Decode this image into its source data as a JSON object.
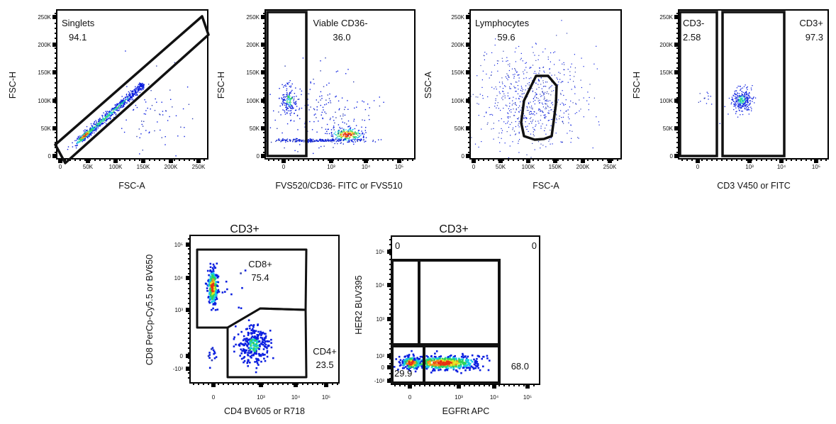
{
  "chart_data": [
    {
      "type": "scatter",
      "title": "",
      "xlabel": "FSC-A",
      "ylabel": "FSC-H",
      "xscale": "linear",
      "yscale": "linear",
      "xticks": [
        "0",
        "50K",
        "100K",
        "150K",
        "200K",
        "250K"
      ],
      "yticks": [
        "0",
        "50K",
        "100K",
        "150K",
        "200K",
        "250K"
      ],
      "xlim": [
        0,
        262144
      ],
      "ylim": [
        0,
        262144
      ],
      "gates": [
        {
          "name": "Singlets",
          "value": "94.1"
        }
      ]
    },
    {
      "type": "scatter",
      "title": "",
      "xlabel": "FVS520/CD36- FITC or FVS510",
      "ylabel": "FSC-H",
      "xscale": "biexponential",
      "yscale": "linear",
      "xticks": [
        "0",
        "10³",
        "10⁴",
        "10⁵"
      ],
      "yticks": [
        "0",
        "50K",
        "100K",
        "150K",
        "200K",
        "250K"
      ],
      "ylim": [
        0,
        262144
      ],
      "gates": [
        {
          "name": "Viable CD36-",
          "value": "36.0"
        }
      ]
    },
    {
      "type": "scatter",
      "title": "",
      "xlabel": "FSC-A",
      "ylabel": "SSC-A",
      "xscale": "linear",
      "yscale": "linear",
      "xticks": [
        "0",
        "50K",
        "100K",
        "150K",
        "200K",
        "250K"
      ],
      "yticks": [
        "0",
        "50K",
        "100K",
        "150K",
        "200K",
        "250K"
      ],
      "xlim": [
        0,
        262144
      ],
      "ylim": [
        0,
        262144
      ],
      "gates": [
        {
          "name": "Lymphocytes",
          "value": "59.6"
        }
      ]
    },
    {
      "type": "scatter",
      "title": "",
      "xlabel": "CD3 V450 or FITC",
      "ylabel": "FSC-H",
      "xscale": "biexponential",
      "yscale": "linear",
      "xticks": [
        "0",
        "10³",
        "10⁴",
        "10⁵"
      ],
      "yticks": [
        "0",
        "50K",
        "100K",
        "150K",
        "200K",
        "250K"
      ],
      "ylim": [
        0,
        262144
      ],
      "gates": [
        {
          "name": "CD3-",
          "value": "2.58"
        },
        {
          "name": "CD3+",
          "value": "97.3"
        }
      ]
    },
    {
      "type": "scatter",
      "title": "CD3+",
      "xlabel": "CD4 BV605 or R718",
      "ylabel": "CD8 PerCp-Cy5.5 or BV650",
      "xscale": "biexponential",
      "yscale": "biexponential",
      "xticks": [
        "0",
        "10³",
        "10⁴",
        "10⁵"
      ],
      "yticks": [
        "10⁵",
        "10⁴",
        "10³",
        "0",
        "-10²"
      ],
      "gates": [
        {
          "name": "CD8+",
          "value": "75.4"
        },
        {
          "name": "CD4+",
          "value": "23.5"
        }
      ]
    },
    {
      "type": "scatter",
      "title": "CD3+",
      "xlabel": "EGFRt APC",
      "ylabel": "HER2 BUV395",
      "xscale": "biexponential",
      "yscale": "biexponential",
      "xticks": [
        "0",
        "10³",
        "10⁴",
        "10⁵"
      ],
      "yticks": [
        "10⁵",
        "10⁴",
        "10³",
        "10²",
        "0",
        "-10²"
      ],
      "gates": [
        {
          "name": "Q1",
          "value": "0"
        },
        {
          "name": "Q2",
          "value": "0"
        },
        {
          "name": "Q3",
          "value": "29.9"
        },
        {
          "name": "Q4",
          "value": "68.0"
        }
      ]
    }
  ],
  "colors": {
    "low": "#0a1ee0",
    "mid_low": "#18c8e8",
    "mid": "#2fd35a",
    "mid_high": "#e8e820",
    "high": "#e83010",
    "gate": "#111111"
  }
}
